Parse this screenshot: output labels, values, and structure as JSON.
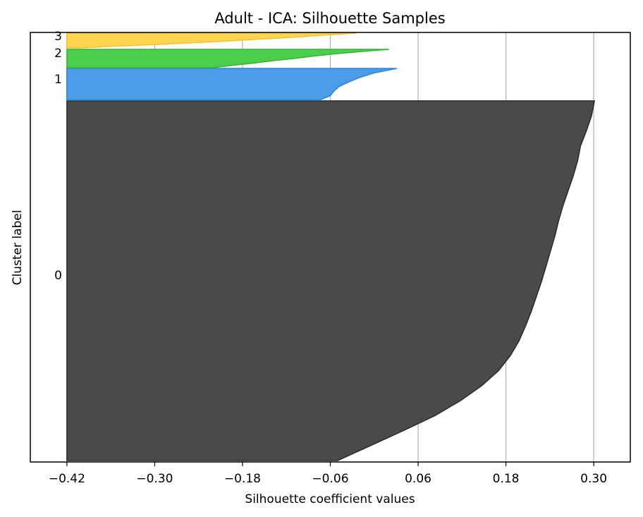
{
  "chart_data": {
    "type": "area",
    "title": "Adult - ICA: Silhouette Samples",
    "xlabel": "Silhouette coefficient values",
    "ylabel": "Cluster label",
    "xlim": [
      -0.47,
      0.35
    ],
    "xticks": [
      -0.42,
      -0.3,
      -0.18,
      -0.06,
      0.06,
      0.18,
      0.3
    ],
    "xtick_labels": [
      "−0.42",
      "−0.30",
      "−0.18",
      "−0.06",
      "0.06",
      "0.18",
      "0.30"
    ],
    "grid": "x",
    "baseline": -0.42,
    "clusters": [
      {
        "label": "0",
        "color": "#4a4a4a",
        "edge": "#2a2a2a",
        "silhouette_values": [
          0.301,
          0.297,
          0.29,
          0.282,
          0.278,
          0.272,
          0.265,
          0.258,
          0.252,
          0.247,
          0.241,
          0.235,
          0.229,
          0.222,
          0.215,
          0.207,
          0.198,
          0.186,
          0.17,
          0.147,
          0.118,
          0.083,
          0.04,
          -0.005,
          -0.05
        ]
      },
      {
        "label": "1",
        "color": "#4a9de6",
        "edge": "#2f86d4",
        "silhouette_values": [
          0.031,
          0.0,
          -0.02,
          -0.035,
          -0.048,
          -0.055,
          -0.06,
          -0.075
        ]
      },
      {
        "label": "2",
        "color": "#4cce4c",
        "edge": "#35b535",
        "silhouette_values": [
          0.02,
          -0.02,
          -0.055,
          -0.085,
          -0.11,
          -0.14,
          -0.165,
          -0.195,
          -0.22
        ]
      },
      {
        "label": "3",
        "color": "#ffd54f",
        "edge": "#f2c232",
        "silhouette_values": [
          -0.025,
          -0.06,
          -0.095,
          -0.13,
          -0.17,
          -0.21,
          -0.255,
          -0.3,
          -0.36,
          -0.4
        ]
      }
    ]
  }
}
